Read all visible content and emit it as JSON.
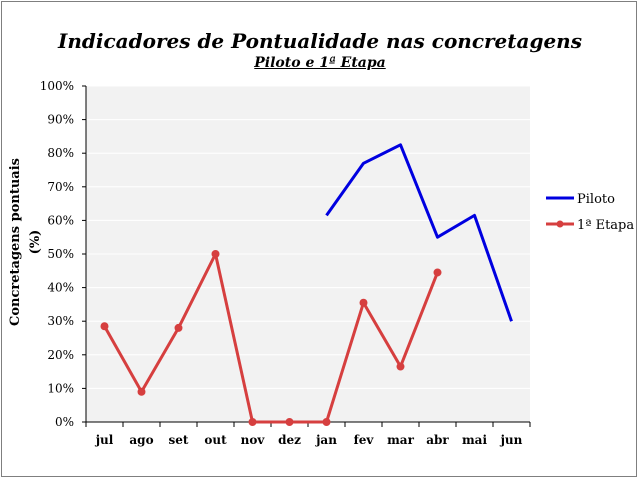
{
  "chart_data": {
    "type": "line",
    "title": "Indicadores de Pontualidade nas concretagens",
    "subtitle": "Piloto e 1ª Etapa",
    "ylabel": "Concretagens pontuais (%)",
    "xlabel": "",
    "categories": [
      "jul",
      "ago",
      "set",
      "out",
      "nov",
      "dez",
      "jan",
      "fev",
      "mar",
      "abr",
      "mai",
      "jun"
    ],
    "ylim": [
      0,
      100
    ],
    "yticks": [
      "0%",
      "10%",
      "20%",
      "30%",
      "40%",
      "50%",
      "60%",
      "70%",
      "80%",
      "90%",
      "100%"
    ],
    "grid": true,
    "legend_position": "right",
    "series": [
      {
        "name": "Piloto",
        "color": "#0000e0",
        "markers": false,
        "values": [
          null,
          null,
          null,
          null,
          null,
          null,
          61.5,
          77,
          82.5,
          55,
          61.5,
          30
        ]
      },
      {
        "name": "1ª Etapa",
        "color": "#d63f3f",
        "markers": true,
        "values": [
          28.5,
          9,
          28,
          50,
          0,
          0,
          0,
          35.5,
          16.5,
          44.5,
          null,
          null
        ]
      }
    ]
  }
}
